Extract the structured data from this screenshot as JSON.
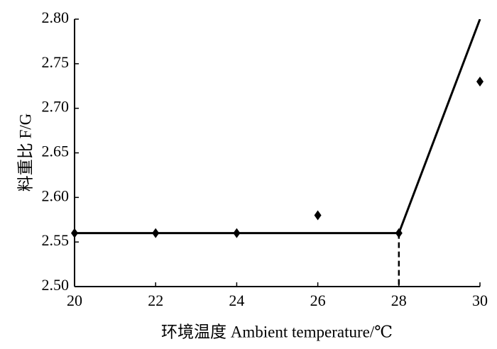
{
  "chart_data": {
    "type": "scatter",
    "xlabel": "环境温度 Ambient temperature/℃",
    "ylabel": "料重比 F/G",
    "x": [
      20,
      22,
      24,
      26,
      28,
      30
    ],
    "values": [
      2.56,
      2.56,
      2.56,
      2.58,
      2.56,
      2.73
    ],
    "color": "#000000",
    "fit": {
      "x": [
        20,
        28,
        30
      ],
      "values": [
        2.56,
        2.56,
        2.8
      ],
      "color": "#000000"
    },
    "breakpoint": {
      "x": 28,
      "y": 2.56
    },
    "xlim": [
      20,
      30
    ],
    "xticks": [
      20,
      22,
      24,
      26,
      28,
      30
    ],
    "ylim": [
      2.5,
      2.8
    ],
    "yticks": [
      {
        "value": 2.5,
        "label": "2.50"
      },
      {
        "value": 2.55,
        "label": "2.55"
      },
      {
        "value": 2.6,
        "label": "2.60"
      },
      {
        "value": 2.65,
        "label": "2.65"
      },
      {
        "value": 2.7,
        "label": "2.70"
      },
      {
        "value": 2.75,
        "label": "2.75"
      },
      {
        "value": 2.8,
        "label": "2.80"
      }
    ],
    "grid": false
  }
}
